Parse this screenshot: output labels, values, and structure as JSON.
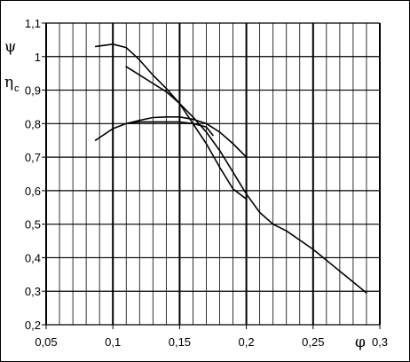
{
  "chart_data": {
    "type": "line",
    "title": "",
    "xlabel": "φ",
    "ylabel_psi": "ψ",
    "ylabel_eta": "η",
    "ylabel_eta_sub": "c",
    "xlim": [
      0.05,
      0.3
    ],
    "ylim": [
      0.2,
      1.1
    ],
    "x_major_ticks": [
      0.05,
      0.1,
      0.15,
      0.2,
      0.25,
      0.3
    ],
    "x_tick_labels": [
      "0,05",
      "0,1",
      "0,15",
      "0,2",
      "0,25",
      "0,3"
    ],
    "x_tick_labels_shown": [
      "0,05",
      "0,1",
      "0,15",
      "0,2",
      "0,25",
      "0,3"
    ],
    "y_ticks": [
      0.2,
      0.3,
      0.4,
      0.5,
      0.6,
      0.7,
      0.8,
      0.9,
      1.0,
      1.1
    ],
    "y_tick_labels": [
      "0,2",
      "0,3",
      "0,4",
      "0,5",
      "0,6",
      "0,7",
      "0,8",
      "0,9",
      "1",
      "1,1"
    ],
    "x_minor_step": 0.01,
    "grid": true,
    "series": [
      {
        "values": [
          [
            0.087,
            1.03
          ],
          [
            0.1,
            1.037
          ],
          [
            0.11,
            1.027
          ],
          [
            0.12,
            0.99
          ],
          [
            0.13,
            0.945
          ],
          [
            0.14,
            0.905
          ],
          [
            0.15,
            0.86
          ],
          [
            0.16,
            0.8
          ],
          [
            0.17,
            0.74
          ],
          [
            0.18,
            0.67
          ],
          [
            0.19,
            0.605
          ],
          [
            0.2,
            0.575
          ]
        ]
      },
      {
        "values": [
          [
            0.11,
            0.97
          ],
          [
            0.12,
            0.945
          ],
          [
            0.13,
            0.92
          ],
          [
            0.14,
            0.895
          ],
          [
            0.15,
            0.86
          ],
          [
            0.16,
            0.82
          ],
          [
            0.17,
            0.775
          ],
          [
            0.18,
            0.72
          ],
          [
            0.19,
            0.655
          ],
          [
            0.2,
            0.59
          ],
          [
            0.21,
            0.535
          ],
          [
            0.22,
            0.5
          ],
          [
            0.23,
            0.48
          ],
          [
            0.25,
            0.425
          ],
          [
            0.27,
            0.36
          ],
          [
            0.29,
            0.295
          ]
        ]
      },
      {
        "values": [
          [
            0.087,
            0.75
          ],
          [
            0.1,
            0.785
          ],
          [
            0.11,
            0.8
          ],
          [
            0.12,
            0.81
          ],
          [
            0.13,
            0.818
          ],
          [
            0.14,
            0.82
          ],
          [
            0.15,
            0.82
          ],
          [
            0.16,
            0.813
          ],
          [
            0.17,
            0.8
          ],
          [
            0.18,
            0.775
          ],
          [
            0.19,
            0.74
          ],
          [
            0.2,
            0.7
          ]
        ]
      },
      {
        "values": [
          [
            0.11,
            0.8
          ],
          [
            0.12,
            0.805
          ],
          [
            0.13,
            0.805
          ],
          [
            0.14,
            0.805
          ],
          [
            0.15,
            0.805
          ],
          [
            0.16,
            0.8
          ],
          [
            0.17,
            0.79
          ],
          [
            0.175,
            0.765
          ]
        ]
      }
    ]
  }
}
